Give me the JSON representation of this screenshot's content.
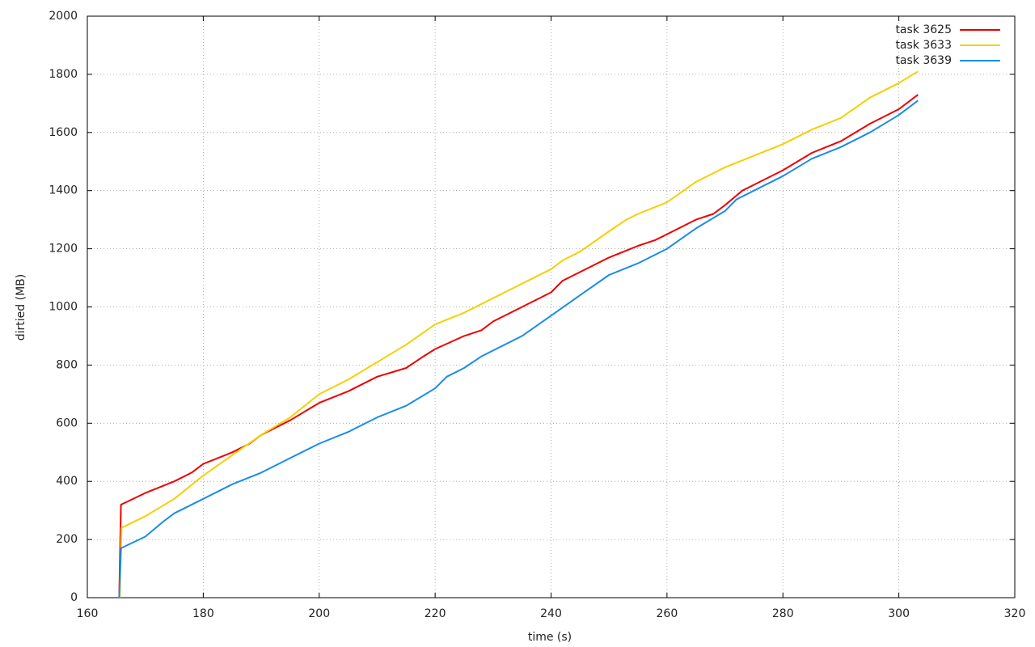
{
  "chart_data": {
    "type": "line",
    "xlabel": "time (s)",
    "ylabel": "dirtied (MB)",
    "xlim": [
      160,
      320
    ],
    "xticks": [
      160,
      180,
      200,
      220,
      240,
      260,
      280,
      300,
      320
    ],
    "ylim": [
      0,
      2000
    ],
    "yticks": [
      0,
      200,
      400,
      600,
      800,
      1000,
      1200,
      1400,
      1600,
      1800,
      2000
    ],
    "grid": true,
    "legend": "top-right",
    "series": [
      {
        "name": "task 3625",
        "color": "#ee0000",
        "x": [
          165.5,
          165.8,
          170,
          175,
          178,
          180,
          185,
          188,
          190,
          195,
          200,
          205,
          210,
          215,
          218,
          220,
          225,
          228,
          230,
          235,
          240,
          242,
          245,
          250,
          255,
          258,
          260,
          265,
          268,
          270,
          273,
          275,
          280,
          285,
          290,
          295,
          300,
          303.3
        ],
        "values": [
          0,
          320,
          360,
          400,
          430,
          460,
          500,
          530,
          560,
          610,
          670,
          710,
          760,
          790,
          830,
          855,
          900,
          920,
          950,
          1000,
          1050,
          1090,
          1120,
          1170,
          1210,
          1230,
          1250,
          1300,
          1320,
          1350,
          1400,
          1420,
          1470,
          1530,
          1570,
          1630,
          1680,
          1730
        ]
      },
      {
        "name": "task 3633",
        "color": "#f5d000",
        "x": [
          165.6,
          165.9,
          170,
          175,
          180,
          185,
          190,
          195,
          200,
          205,
          210,
          215,
          220,
          225,
          230,
          235,
          240,
          242,
          245,
          250,
          253,
          255,
          260,
          265,
          270,
          275,
          280,
          285,
          290,
          295,
          300,
          303.3
        ],
        "values": [
          0,
          240,
          280,
          340,
          420,
          490,
          560,
          620,
          700,
          750,
          810,
          870,
          940,
          980,
          1030,
          1080,
          1130,
          1160,
          1190,
          1260,
          1300,
          1320,
          1360,
          1430,
          1480,
          1520,
          1560,
          1610,
          1650,
          1720,
          1770,
          1810
        ]
      },
      {
        "name": "task 3639",
        "color": "#1a8ce8",
        "x": [
          165.5,
          165.8,
          170,
          173,
          175,
          180,
          185,
          190,
          195,
          200,
          205,
          210,
          215,
          220,
          222,
          225,
          228,
          230,
          235,
          240,
          245,
          250,
          255,
          260,
          265,
          270,
          272,
          275,
          280,
          285,
          290,
          295,
          300,
          303.3
        ],
        "values": [
          0,
          170,
          210,
          260,
          290,
          340,
          390,
          430,
          480,
          530,
          570,
          620,
          660,
          720,
          760,
          790,
          830,
          850,
          900,
          970,
          1040,
          1110,
          1150,
          1200,
          1270,
          1330,
          1370,
          1400,
          1450,
          1510,
          1550,
          1600,
          1660,
          1710
        ]
      }
    ]
  }
}
